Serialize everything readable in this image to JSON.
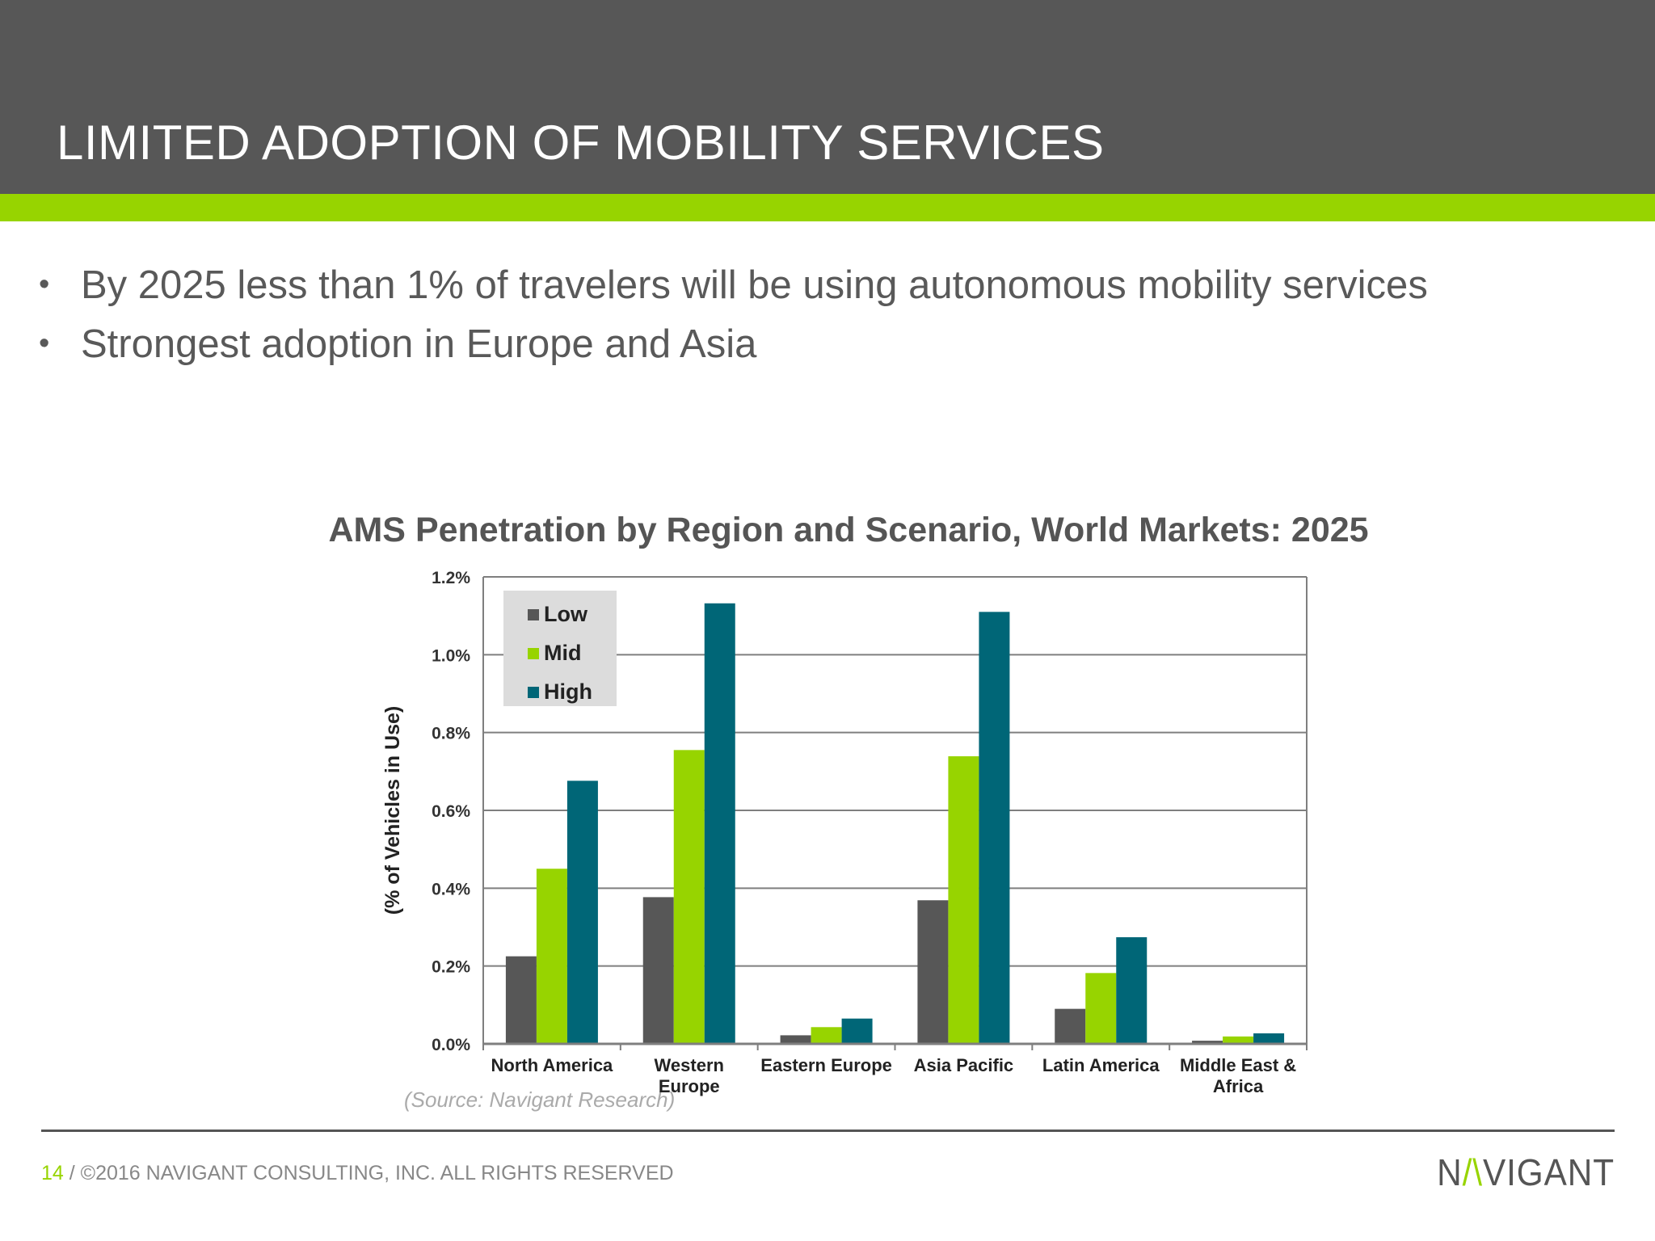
{
  "slide": {
    "title": "LIMITED ADOPTION OF MOBILITY SERVICES",
    "bullets": [
      "By 2025 less than 1% of travelers will be using autonomous mobility services",
      "Strongest adoption in Europe and Asia"
    ],
    "source": "(Source: Navigant Research)",
    "page_number": "14",
    "copyright": " / ©2016 NAVIGANT CONSULTING, INC. ALL RIGHTS RESERVED",
    "logo_text": "NAVIGANT",
    "colors": {
      "header": "#575757",
      "accent": "#97d400"
    }
  },
  "chart_data": {
    "type": "bar",
    "title": "AMS Penetration by Region and Scenario, World Markets: 2025",
    "xlabel": "",
    "ylabel": "(% of Vehicles in Use)",
    "ylim": [
      0,
      1.2
    ],
    "yticks": [
      "0.0%",
      "0.2%",
      "0.4%",
      "0.6%",
      "0.8%",
      "1.0%",
      "1.2%"
    ],
    "categories": [
      [
        "North America"
      ],
      [
        "Western",
        "Europe"
      ],
      [
        "Eastern Europe"
      ],
      [
        "Asia Pacific"
      ],
      [
        "Latin America"
      ],
      [
        "Middle East &",
        "Africa"
      ]
    ],
    "series": [
      {
        "name": "Low",
        "color": "#575757",
        "values": [
          0.225,
          0.377,
          0.022,
          0.369,
          0.09,
          0.008
        ]
      },
      {
        "name": "Mid",
        "color": "#97d400",
        "values": [
          0.45,
          0.755,
          0.043,
          0.739,
          0.182,
          0.019
        ]
      },
      {
        "name": "High",
        "color": "#006677",
        "values": [
          0.676,
          1.132,
          0.065,
          1.11,
          0.274,
          0.027
        ]
      }
    ],
    "grid": true,
    "legend": "top-left"
  }
}
